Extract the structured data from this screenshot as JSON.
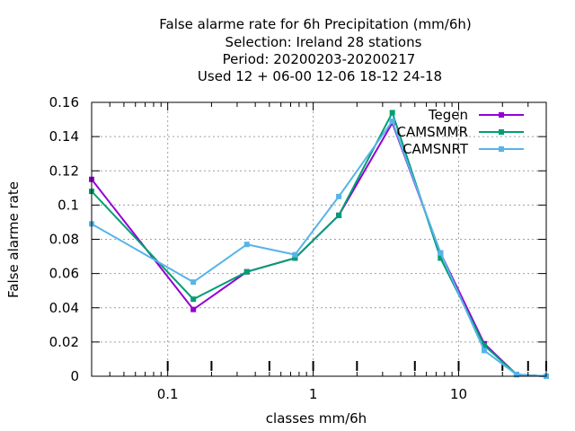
{
  "chart_data": {
    "type": "line",
    "title_lines": [
      "False alarme rate  for 6h Precipitation (mm/6h)",
      "Selection: Ireland     28 stations",
      "Period: 20200203-20200217",
      "Used  12 + 06-00 12-06 18-12 24-18"
    ],
    "xlabel": "classes mm/6h",
    "ylabel": "False alarme rate",
    "x_scale": "log",
    "xlim": [
      0.03,
      40
    ],
    "ylim": [
      0,
      0.16
    ],
    "x_ticks": [
      0.1,
      1,
      10
    ],
    "x_tick_labels": [
      "0.1",
      "1",
      "10"
    ],
    "y_ticks": [
      0,
      0.02,
      0.04,
      0.06,
      0.08,
      0.1,
      0.12,
      0.14,
      0.16
    ],
    "y_tick_labels": [
      "0",
      "0.02",
      "0.04",
      "0.06",
      "0.08",
      "0.1",
      "0.12",
      "0.14",
      "0.16"
    ],
    "class_markers": [
      0.1,
      0.2,
      0.5,
      1,
      2,
      5,
      10,
      20,
      30,
      40
    ],
    "grid": true,
    "legend_position": "top-right",
    "x": [
      0.03,
      0.15,
      0.35,
      0.75,
      1.5,
      3.5,
      7.5,
      15,
      25,
      40
    ],
    "series": [
      {
        "name": "Tegen",
        "color": "#9400d3",
        "values": [
          0.115,
          0.039,
          0.061,
          0.069,
          0.094,
          0.148,
          0.072,
          0.019,
          0.001,
          0.0
        ]
      },
      {
        "name": "CAMSMMR",
        "color": "#009e73",
        "values": [
          0.108,
          0.045,
          0.061,
          0.069,
          0.094,
          0.154,
          0.069,
          0.018,
          0.001,
          0.0
        ]
      },
      {
        "name": "CAMSNRT",
        "color": "#56b4e9",
        "values": [
          0.089,
          0.055,
          0.077,
          0.071,
          0.105,
          0.149,
          0.072,
          0.015,
          0.001,
          0.0
        ]
      }
    ]
  }
}
